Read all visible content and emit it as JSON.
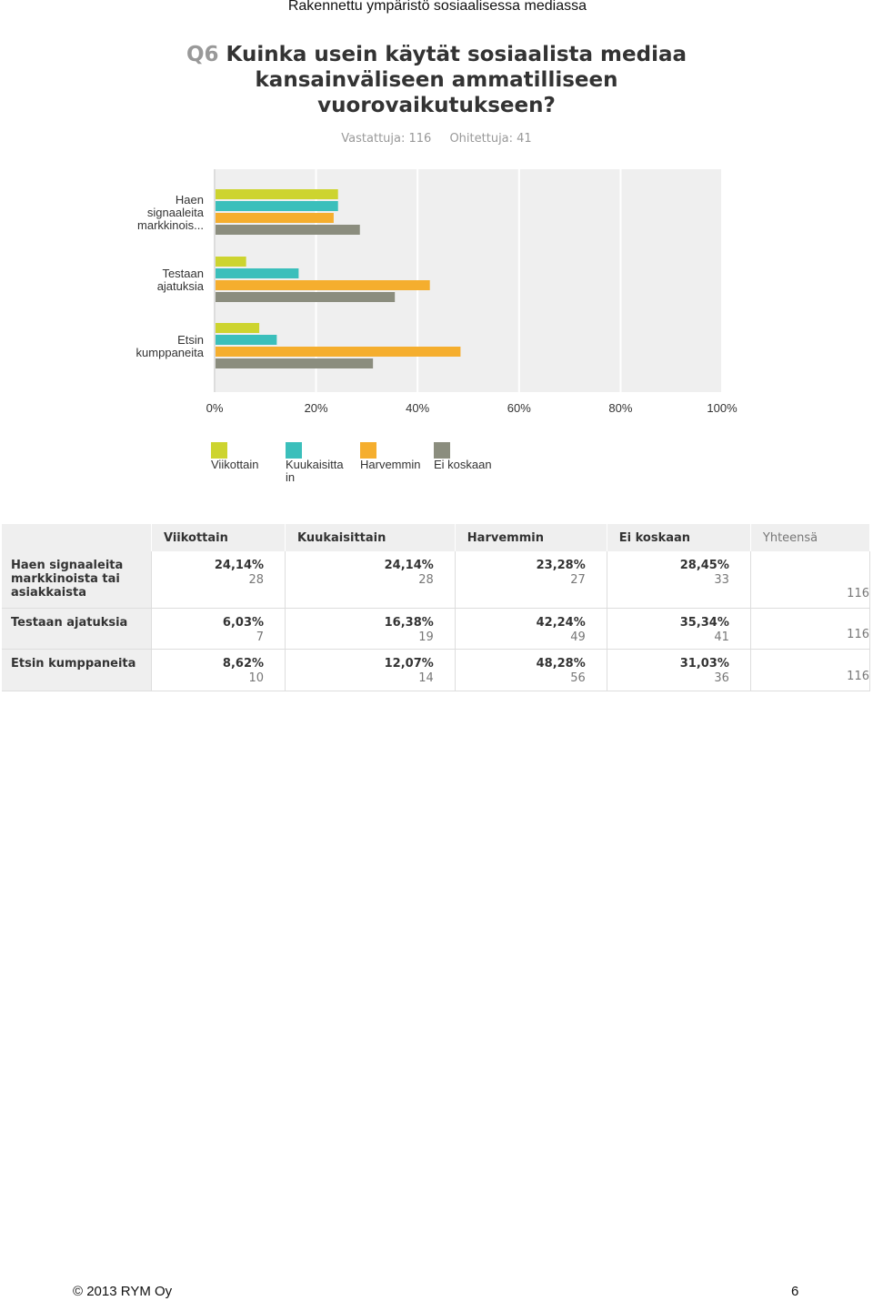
{
  "header": {
    "title": "Rakennettu ympäristö sosiaalisessa mediassa"
  },
  "question": {
    "number": "Q6",
    "text": "Kuinka usein käytät sosiaalista mediaa kansainväliseen ammatilliseen vuorovaikutukseen?",
    "answered": "Vastattuja: 116",
    "skipped": "Ohitettuja: 41"
  },
  "colors": {
    "Viikottain": "#cdd42f",
    "Kuukaisittain": "#3bbfbb",
    "Harvemmin": "#f5ae2e",
    "Ei koskaan": "#8b8d7e",
    "plot_bg": "#efefef"
  },
  "chart_data": {
    "type": "bar",
    "orientation": "horizontal",
    "categories": [
      "Haen signaaleita markkinois...",
      "Testaan ajatuksia",
      "Etsin kumppaneita"
    ],
    "series": [
      {
        "name": "Viikottain",
        "values": [
          24.14,
          6.03,
          8.62
        ]
      },
      {
        "name": "Kuukaisitta in",
        "values": [
          24.14,
          16.38,
          12.07
        ]
      },
      {
        "name": "Harvemmin",
        "values": [
          23.28,
          42.24,
          48.28
        ]
      },
      {
        "name": "Ei koskaan",
        "values": [
          28.45,
          35.34,
          31.03
        ]
      }
    ],
    "xticks": [
      "0%",
      "20%",
      "40%",
      "60%",
      "80%",
      "100%"
    ],
    "xlim": [
      0,
      100
    ],
    "grid": true,
    "legend": "bottom"
  },
  "table": {
    "headers": [
      "Viikottain",
      "Kuukaisittain",
      "Harvemmin",
      "Ei koskaan"
    ],
    "total_header": "Yhteensä",
    "rows": [
      {
        "label": "Haen signaaleita markkinoista tai asiakkaista",
        "cells": [
          {
            "pct": "24,14%",
            "n": "28"
          },
          {
            "pct": "24,14%",
            "n": "28"
          },
          {
            "pct": "23,28%",
            "n": "27"
          },
          {
            "pct": "28,45%",
            "n": "33"
          }
        ],
        "total": "116"
      },
      {
        "label": "Testaan ajatuksia",
        "cells": [
          {
            "pct": "6,03%",
            "n": "7"
          },
          {
            "pct": "16,38%",
            "n": "19"
          },
          {
            "pct": "42,24%",
            "n": "49"
          },
          {
            "pct": "35,34%",
            "n": "41"
          }
        ],
        "total": "116"
      },
      {
        "label": "Etsin kumppaneita",
        "cells": [
          {
            "pct": "8,62%",
            "n": "10"
          },
          {
            "pct": "12,07%",
            "n": "14"
          },
          {
            "pct": "48,28%",
            "n": "56"
          },
          {
            "pct": "31,03%",
            "n": "36"
          }
        ],
        "total": "116"
      }
    ]
  },
  "footer": {
    "copyright": "© 2013 RYM Oy",
    "page": "6"
  }
}
